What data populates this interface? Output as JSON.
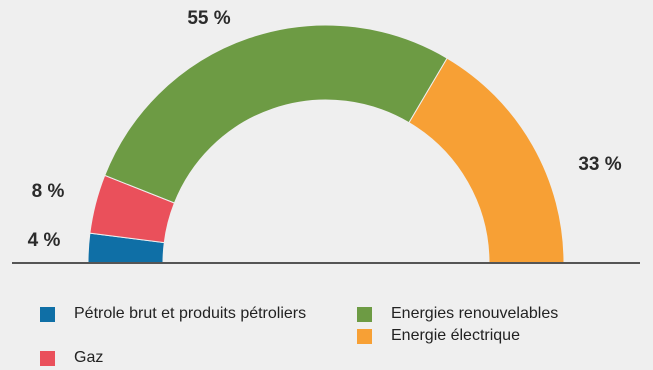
{
  "chart_data": {
    "type": "pie",
    "variant": "semi-donut",
    "slices": [
      {
        "label": "Pétrole brut et produits pétroliers",
        "value": 4,
        "display": "4 %",
        "color": "#0f6fa6"
      },
      {
        "label": "Gaz",
        "value": 8,
        "display": "8 %",
        "color": "#ea505b"
      },
      {
        "label": "Energies renouvelables",
        "value": 55,
        "display": "55 %",
        "color": "#6d9b44"
      },
      {
        "label": "Energie électrique",
        "value": 33,
        "display": "33 %",
        "color": "#f7a035"
      }
    ],
    "legend_placement": "bottom"
  }
}
